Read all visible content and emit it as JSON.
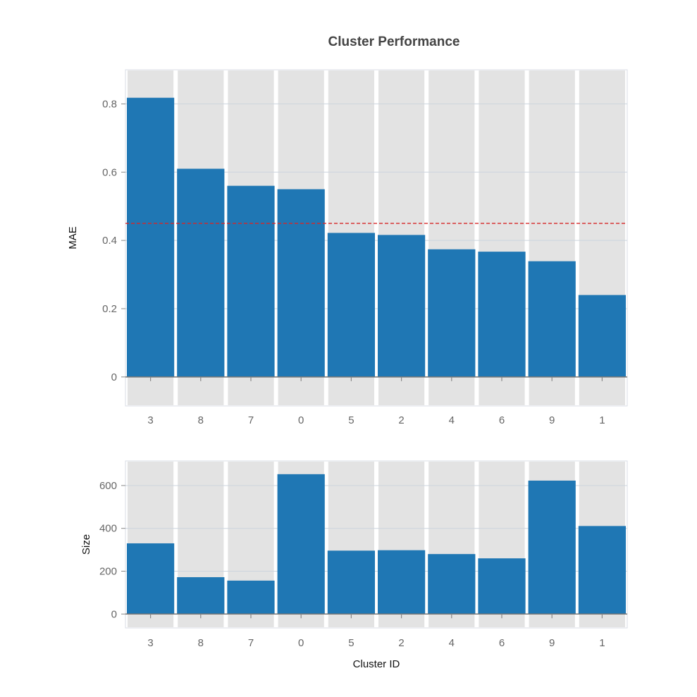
{
  "chart_data": {
    "title": "Cluster Performance",
    "xlabel": "Cluster ID",
    "categories": [
      "3",
      "8",
      "7",
      "0",
      "5",
      "2",
      "4",
      "6",
      "9",
      "1"
    ],
    "colors": {
      "bar": "#1f77b4",
      "band": "#e3e3e3",
      "grid": "#ccd4de",
      "reference_line": "#d62728"
    },
    "panels": [
      {
        "type": "bar",
        "ylabel": "MAE",
        "values": [
          0.818,
          0.61,
          0.56,
          0.55,
          0.422,
          0.416,
          0.374,
          0.367,
          0.339,
          0.24
        ],
        "ylim": [
          -0.085,
          0.9
        ],
        "yticks": [
          0,
          0.2,
          0.4,
          0.6,
          0.8
        ],
        "ytick_labels": [
          "0",
          "0.2",
          "0.4",
          "0.6",
          "0.8"
        ],
        "reference_line": 0.45,
        "grid": true
      },
      {
        "type": "bar",
        "ylabel": "Size",
        "values": [
          330,
          172,
          156,
          653,
          296,
          298,
          280,
          260,
          623,
          411
        ],
        "ylim": [
          -65,
          715
        ],
        "yticks": [
          0,
          200,
          400,
          600
        ],
        "ytick_labels": [
          "0",
          "200",
          "400",
          "600"
        ],
        "grid": true
      }
    ]
  }
}
